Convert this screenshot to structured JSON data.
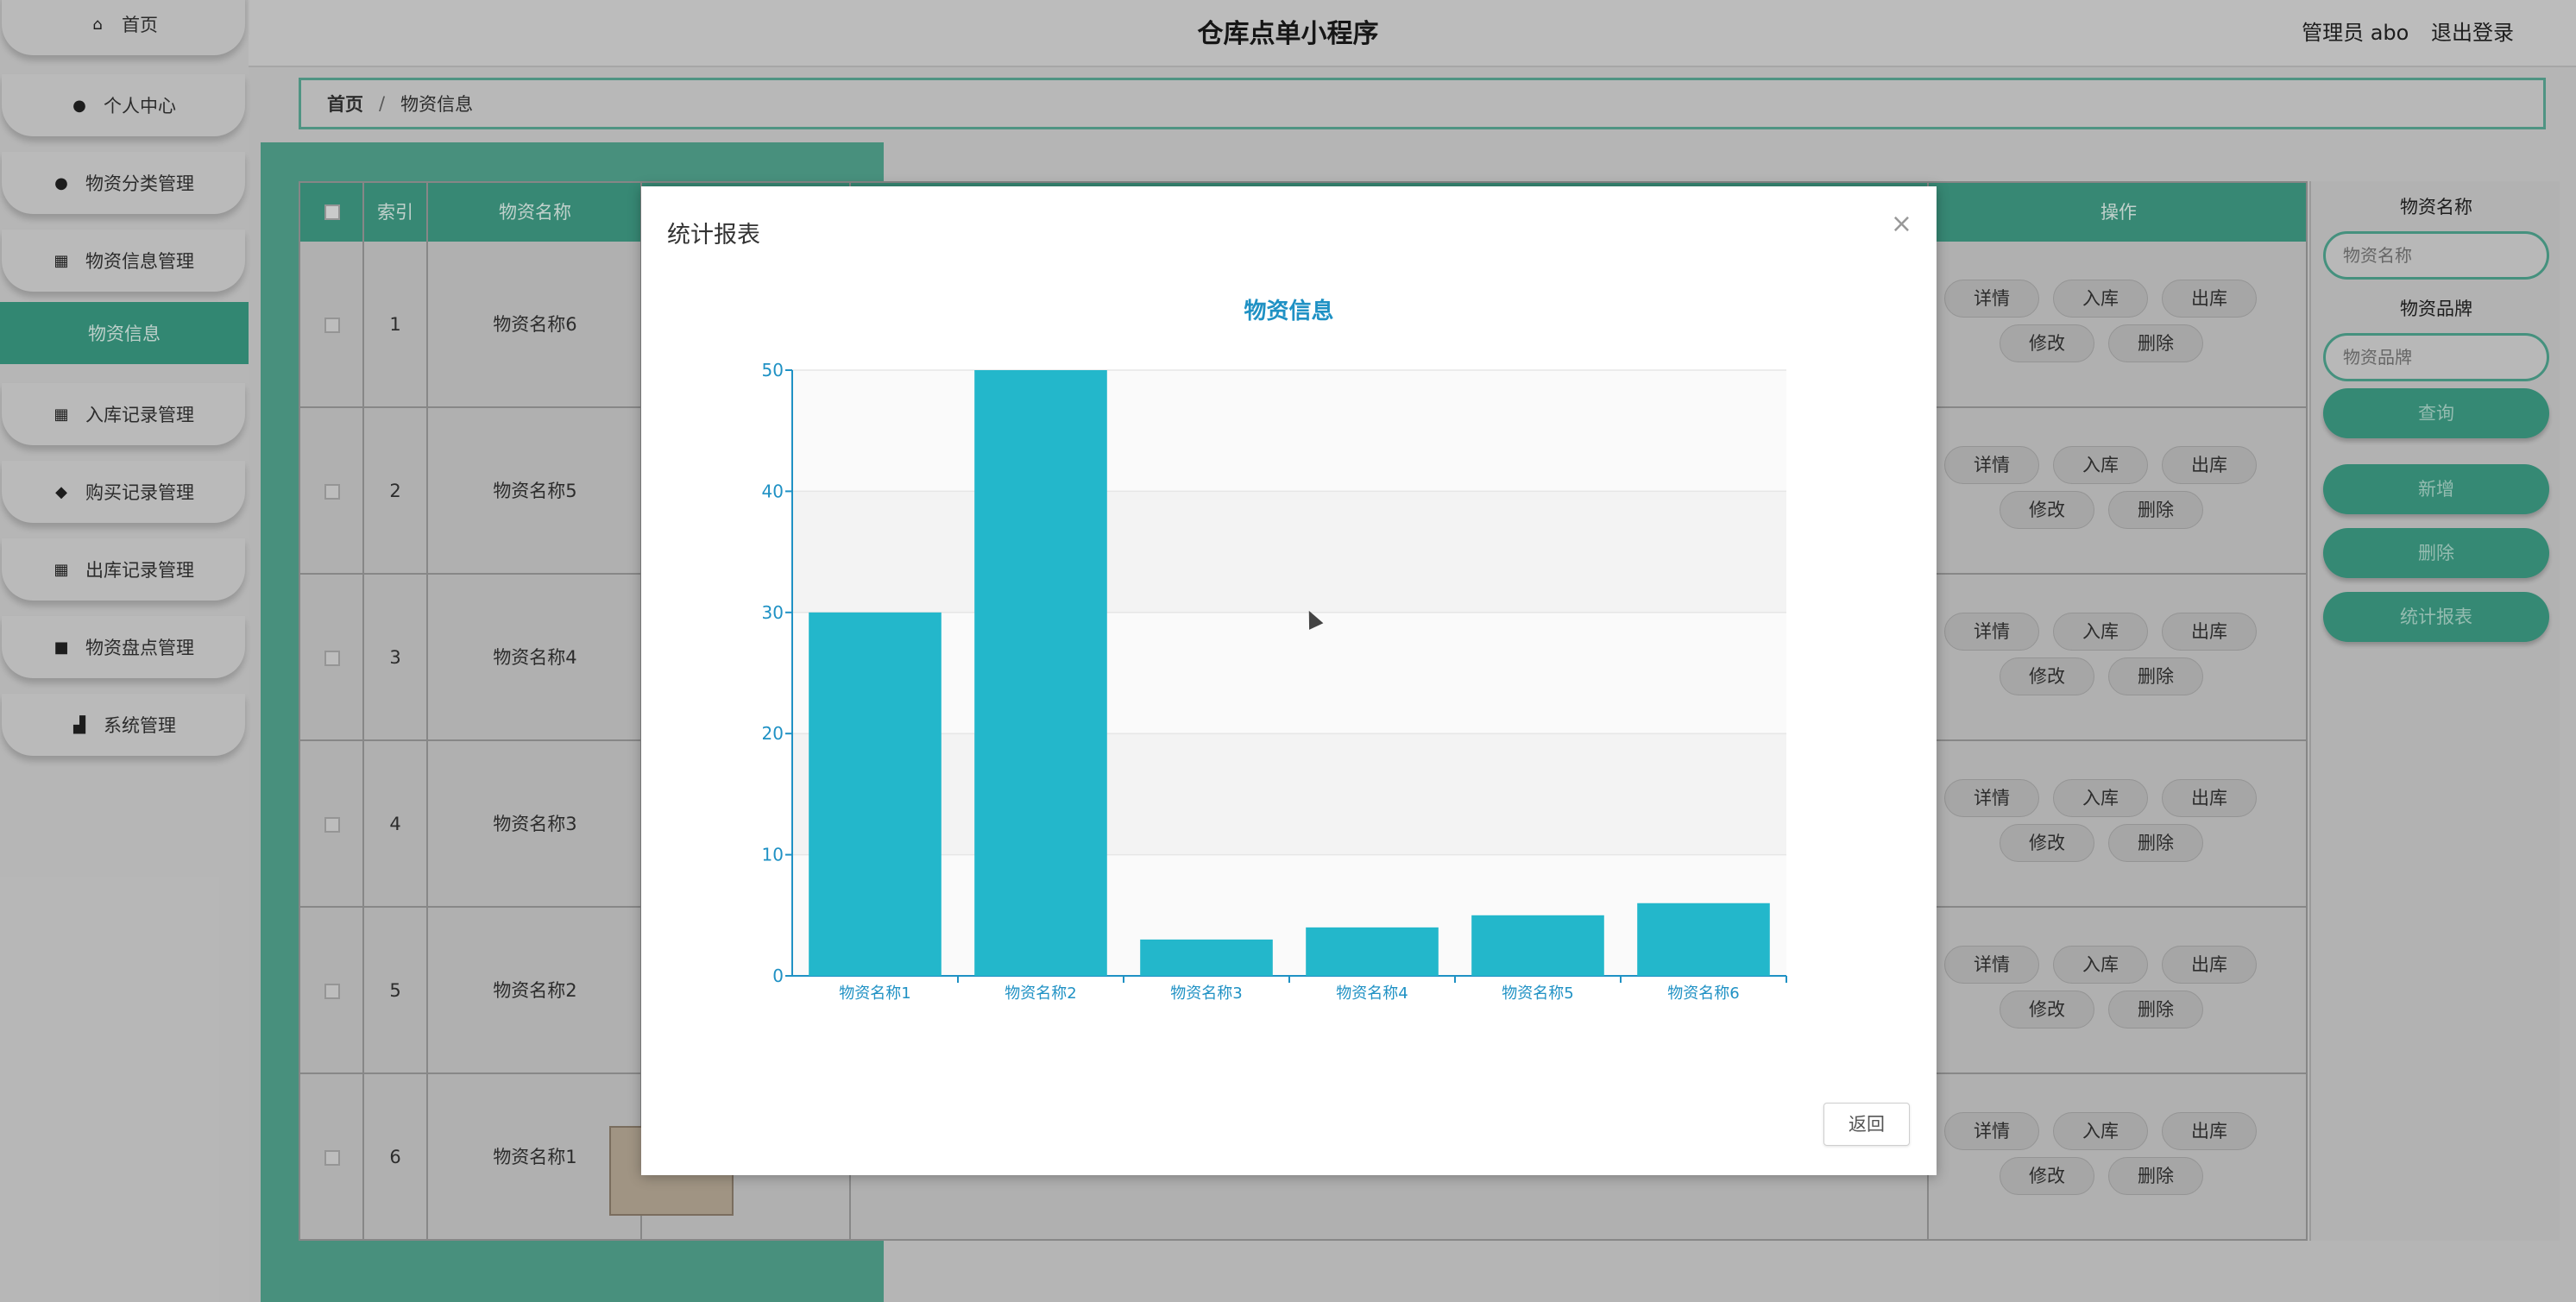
{
  "app_title": "仓库点单小程序",
  "header": {
    "admin_label": "管理员 abo",
    "logout_label": "退出登录"
  },
  "sidebar": {
    "items": [
      {
        "label": "首页",
        "icon": "home-icon"
      },
      {
        "label": "个人中心",
        "icon": "user-icon"
      },
      {
        "label": "物资分类管理",
        "icon": "person-icon"
      },
      {
        "label": "物资信息管理",
        "icon": "grid-icon"
      },
      {
        "label": "入库记录管理",
        "icon": "grid-icon"
      },
      {
        "label": "购买记录管理",
        "icon": "pin-icon"
      },
      {
        "label": "出库记录管理",
        "icon": "grid-icon"
      },
      {
        "label": "物资盘点管理",
        "icon": "briefcase-icon"
      },
      {
        "label": "系统管理",
        "icon": "chart-icon"
      }
    ],
    "active_sub": "物资信息"
  },
  "breadcrumb": {
    "home": "首页",
    "separator": "/",
    "current": "物资信息"
  },
  "table": {
    "headers": {
      "index": "索引",
      "name": "物资名称",
      "actions": "操作"
    },
    "rows": [
      {
        "index": "1",
        "name": "物资名称6"
      },
      {
        "index": "2",
        "name": "物资名称5"
      },
      {
        "index": "3",
        "name": "物资名称4"
      },
      {
        "index": "4",
        "name": "物资名称3"
      },
      {
        "index": "5",
        "name": "物资名称2"
      },
      {
        "index": "6",
        "name": "物资名称1"
      }
    ],
    "row_actions": {
      "detail": "详情",
      "in": "入库",
      "out": "出库",
      "edit": "修改",
      "delete": "删除"
    }
  },
  "search": {
    "name_label": "物资名称",
    "name_placeholder": "物资名称",
    "brand_label": "物资品牌",
    "brand_placeholder": "物资品牌",
    "query_btn": "查询",
    "add_btn": "新增",
    "delete_btn": "删除",
    "report_btn": "统计报表"
  },
  "modal": {
    "title": "统计报表",
    "close": "×",
    "back_btn": "返回"
  },
  "chart_data": {
    "type": "bar",
    "title": "物资信息",
    "categories": [
      "物资名称1",
      "物资名称2",
      "物资名称3",
      "物资名称4",
      "物资名称5",
      "物资名称6"
    ],
    "values": [
      30,
      50,
      3,
      4,
      5,
      6
    ],
    "ylim": [
      0,
      50
    ],
    "yticks": [
      0,
      10,
      20,
      30,
      40,
      50
    ],
    "bar_color": "#23b7cb",
    "axis_color": "#1f91c4"
  },
  "colors": {
    "accent": "#3d9c84"
  }
}
